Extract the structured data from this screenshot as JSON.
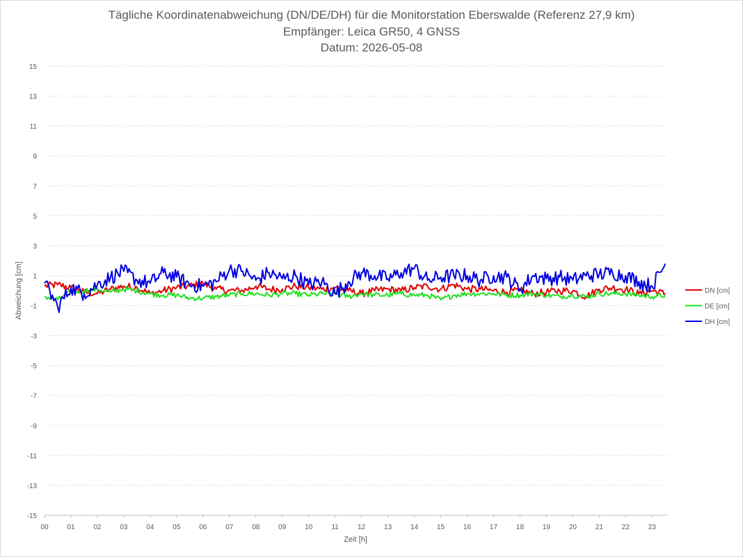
{
  "chart_data": {
    "type": "line",
    "title": "Tägliche Koordinatenabweichung (DN/DE/DH) für die Monitorstation Eberswalde (Referenz 27,9 km)",
    "subtitle": "Empfänger: Leica GR50, 4 GNSS",
    "subtitle2": "Datum: 2026-05-08",
    "xlabel": "Zeit [h]",
    "ylabel": "Abweichung [cm]",
    "xlim": [
      0,
      23.5
    ],
    "ylim": [
      -15,
      15
    ],
    "x_ticks": [
      "00",
      "01",
      "02",
      "03",
      "04",
      "05",
      "06",
      "07",
      "08",
      "09",
      "10",
      "11",
      "12",
      "13",
      "14",
      "15",
      "16",
      "17",
      "18",
      "19",
      "20",
      "21",
      "22",
      "23"
    ],
    "y_ticks": [
      15,
      13,
      11,
      9,
      7,
      5,
      3,
      1,
      -1,
      -3,
      -5,
      -7,
      -9,
      -11,
      -13,
      -15
    ],
    "grid": true,
    "legend_position": "right",
    "series": [
      {
        "name": "DN [cm]",
        "color": "#e00000",
        "x": [
          0,
          0.5,
          1,
          1.5,
          2,
          2.5,
          3,
          3.5,
          4,
          4.5,
          5,
          5.5,
          6,
          6.5,
          7,
          7.5,
          8,
          8.5,
          9,
          9.5,
          10,
          10.5,
          11,
          11.5,
          12,
          12.5,
          13,
          13.5,
          14,
          14.5,
          15,
          15.5,
          16,
          16.5,
          17,
          17.5,
          18,
          18.5,
          19,
          19.5,
          20,
          20.5,
          21,
          21.5,
          22,
          22.5,
          23,
          23.5
        ],
        "values": [
          0.3,
          0.4,
          0.2,
          -0.1,
          -0.2,
          0.1,
          0.3,
          0.2,
          -0.2,
          0.0,
          0.2,
          0.3,
          0.5,
          0.1,
          0.0,
          0.0,
          0.3,
          0.1,
          0.1,
          0.3,
          0.2,
          0.1,
          0.2,
          0.0,
          -0.2,
          0.0,
          0.1,
          0.0,
          0.2,
          0.3,
          0.1,
          0.4,
          0.1,
          0.1,
          0.0,
          -0.1,
          0.0,
          -0.2,
          -0.1,
          0.0,
          0.0,
          -0.4,
          0.1,
          0.2,
          0.1,
          -0.2,
          0.0,
          -0.2
        ]
      },
      {
        "name": "DE [cm]",
        "color": "#22e022",
        "x": [
          0,
          0.5,
          1,
          1.5,
          2,
          2.5,
          3,
          3.5,
          4,
          4.5,
          5,
          5.5,
          6,
          6.5,
          7,
          7.5,
          8,
          8.5,
          9,
          9.5,
          10,
          10.5,
          11,
          11.5,
          12,
          12.5,
          13,
          13.5,
          14,
          14.5,
          15,
          15.5,
          16,
          16.5,
          17,
          17.5,
          18,
          18.5,
          19,
          19.5,
          20,
          20.5,
          21,
          21.5,
          22,
          22.5,
          23,
          23.5
        ],
        "values": [
          -0.4,
          -0.6,
          -0.1,
          0.0,
          0.1,
          -0.1,
          0.1,
          0.0,
          -0.2,
          -0.3,
          -0.3,
          -0.5,
          -0.5,
          -0.4,
          -0.3,
          -0.2,
          -0.2,
          -0.3,
          -0.2,
          -0.2,
          -0.3,
          -0.2,
          -0.2,
          -0.4,
          -0.2,
          -0.3,
          -0.3,
          -0.2,
          -0.3,
          -0.3,
          -0.6,
          -0.3,
          -0.2,
          -0.2,
          -0.2,
          -0.3,
          -0.3,
          -0.2,
          -0.3,
          -0.4,
          -0.3,
          -0.4,
          -0.2,
          -0.2,
          -0.2,
          -0.3,
          -0.4,
          -0.3
        ]
      },
      {
        "name": "DH [cm]",
        "color": "#0000e0",
        "x": [
          0,
          0.5,
          1,
          1.5,
          2,
          2.5,
          3,
          3.5,
          4,
          4.5,
          5,
          5.5,
          6,
          6.5,
          7,
          7.5,
          8,
          8.5,
          9,
          9.5,
          10,
          10.5,
          11,
          11.5,
          12,
          12.5,
          13,
          13.5,
          14,
          14.5,
          15,
          15.5,
          16,
          16.5,
          17,
          17.5,
          18,
          18.5,
          19,
          19.5,
          20,
          20.5,
          21,
          21.5,
          22,
          22.5,
          23,
          23.5
        ],
        "values": [
          0.5,
          -1.1,
          0.2,
          -0.2,
          0.4,
          0.9,
          1.3,
          0.7,
          0.5,
          1.2,
          0.9,
          0.4,
          0.3,
          0.6,
          1.4,
          1.3,
          0.7,
          1.2,
          0.8,
          1.0,
          0.4,
          0.6,
          -0.2,
          0.6,
          1.2,
          1.0,
          0.8,
          1.2,
          1.5,
          0.7,
          0.9,
          1.0,
          1.0,
          0.7,
          1.0,
          0.9,
          0.1,
          1.0,
          0.8,
          0.9,
          0.7,
          1.0,
          1.1,
          1.2,
          1.0,
          0.6,
          0.3,
          1.8
        ]
      }
    ]
  }
}
